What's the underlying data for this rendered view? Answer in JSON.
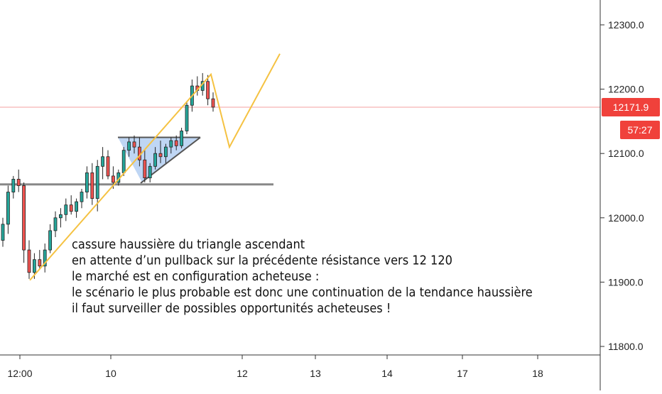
{
  "chart_data": {
    "type": "candlestick",
    "y_axis": {
      "ticks": [
        "12300.0",
        "12200.0",
        "12100.0",
        "12000.0",
        "11900.0",
        "11800.0"
      ],
      "tick_values": [
        12300,
        12200,
        12100,
        12000,
        11900,
        11800
      ],
      "range": [
        11790,
        12340
      ]
    },
    "x_axis": {
      "ticks": [
        "12:00",
        "10",
        "12",
        "13",
        "14",
        "17",
        "18"
      ]
    },
    "current_price": {
      "label": "12171.9",
      "value": 12171.9,
      "countdown": "57:27",
      "tag_color": "#f0413b"
    },
    "colors": {
      "up": "#26a69a",
      "down": "#ef5350",
      "wick": "#222222",
      "support_line": "#888888",
      "zigzag": "#f5c242",
      "triangle_fill": "#a9c8f0",
      "price_line": "#f6a0a0"
    },
    "support_level": 12052,
    "triangle": {
      "resistance": 12125,
      "apex_price": 12125,
      "low_point": 12055
    },
    "zigzag_path_prices": [
      11903,
      12223,
      12110,
      12255
    ],
    "candles": [
      {
        "o": 11965,
        "h": 12000,
        "l": 11955,
        "c": 11990
      },
      {
        "o": 11990,
        "h": 12050,
        "l": 11975,
        "c": 12040
      },
      {
        "o": 12040,
        "h": 12065,
        "l": 12030,
        "c": 12060
      },
      {
        "o": 12060,
        "h": 12075,
        "l": 12040,
        "c": 12050
      },
      {
        "o": 12050,
        "h": 12055,
        "l": 11930,
        "c": 11950
      },
      {
        "o": 11950,
        "h": 11965,
        "l": 11905,
        "c": 11915
      },
      {
        "o": 11915,
        "h": 11945,
        "l": 11905,
        "c": 11935
      },
      {
        "o": 11935,
        "h": 11950,
        "l": 11920,
        "c": 11925
      },
      {
        "o": 11925,
        "h": 11960,
        "l": 11915,
        "c": 11950
      },
      {
        "o": 11950,
        "h": 11990,
        "l": 11945,
        "c": 11980
      },
      {
        "o": 11980,
        "h": 12010,
        "l": 11970,
        "c": 12000
      },
      {
        "o": 12000,
        "h": 12015,
        "l": 11985,
        "c": 12005
      },
      {
        "o": 12005,
        "h": 12030,
        "l": 11995,
        "c": 12020
      },
      {
        "o": 12020,
        "h": 12035,
        "l": 12005,
        "c": 12010
      },
      {
        "o": 12010,
        "h": 12030,
        "l": 12000,
        "c": 12025
      },
      {
        "o": 12025,
        "h": 12045,
        "l": 12015,
        "c": 12040
      },
      {
        "o": 12040,
        "h": 12080,
        "l": 12030,
        "c": 12070
      },
      {
        "o": 12070,
        "h": 12085,
        "l": 12020,
        "c": 12030
      },
      {
        "o": 12030,
        "h": 12090,
        "l": 12010,
        "c": 12080
      },
      {
        "o": 12080,
        "h": 12110,
        "l": 12060,
        "c": 12095
      },
      {
        "o": 12095,
        "h": 12105,
        "l": 12060,
        "c": 12065
      },
      {
        "o": 12065,
        "h": 12080,
        "l": 12045,
        "c": 12055
      },
      {
        "o": 12055,
        "h": 12075,
        "l": 12050,
        "c": 12070
      },
      {
        "o": 12070,
        "h": 12110,
        "l": 12065,
        "c": 12105
      },
      {
        "o": 12105,
        "h": 12125,
        "l": 12095,
        "c": 12118
      },
      {
        "o": 12118,
        "h": 12128,
        "l": 12100,
        "c": 12110
      },
      {
        "o": 12110,
        "h": 12125,
        "l": 12080,
        "c": 12090
      },
      {
        "o": 12090,
        "h": 12105,
        "l": 12055,
        "c": 12062
      },
      {
        "o": 12062,
        "h": 12085,
        "l": 12055,
        "c": 12080
      },
      {
        "o": 12080,
        "h": 12110,
        "l": 12075,
        "c": 12100
      },
      {
        "o": 12100,
        "h": 12120,
        "l": 12085,
        "c": 12095
      },
      {
        "o": 12095,
        "h": 12115,
        "l": 12085,
        "c": 12110
      },
      {
        "o": 12110,
        "h": 12125,
        "l": 12100,
        "c": 12120
      },
      {
        "o": 12120,
        "h": 12128,
        "l": 12105,
        "c": 12112
      },
      {
        "o": 12112,
        "h": 12140,
        "l": 12108,
        "c": 12135
      },
      {
        "o": 12135,
        "h": 12180,
        "l": 12130,
        "c": 12175
      },
      {
        "o": 12175,
        "h": 12215,
        "l": 12165,
        "c": 12205
      },
      {
        "o": 12205,
        "h": 12220,
        "l": 12190,
        "c": 12198
      },
      {
        "o": 12198,
        "h": 12225,
        "l": 12190,
        "c": 12212
      },
      {
        "o": 12212,
        "h": 12222,
        "l": 12175,
        "c": 12185
      },
      {
        "o": 12185,
        "h": 12195,
        "l": 12165,
        "c": 12172
      }
    ],
    "annotation_lines": [
      "cassure haussière du triangle ascendant",
      "en attente d’un pullback sur la précédente résistance vers 12 120",
      "le marché est en configuration acheteuse :",
      "le scénario le plus probable est donc une continuation de la tendance haussière",
      "il faut surveiller de possibles opportunités acheteuses !"
    ]
  }
}
